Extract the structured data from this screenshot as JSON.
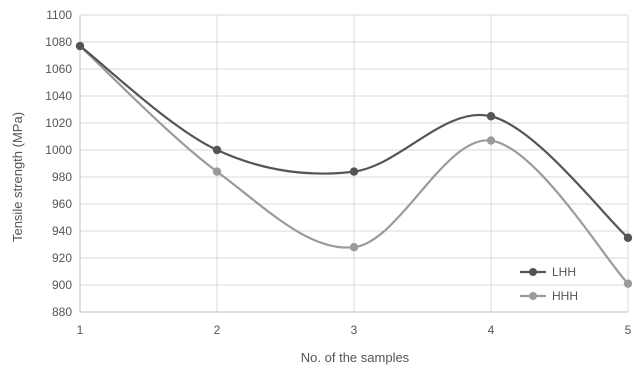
{
  "chart_data": {
    "type": "line",
    "title": "",
    "xlabel": "No. of the samples",
    "ylabel": "Tensile strength (MPa)",
    "x": [
      1,
      2,
      3,
      4,
      5
    ],
    "xlim": [
      1,
      5
    ],
    "ylim": [
      880,
      1100
    ],
    "ystep": 20,
    "grid": true,
    "smooth": true,
    "legend_position": "bottom-right",
    "series": [
      {
        "name": "LHH",
        "values": [
          1077,
          1000,
          984,
          1025,
          935
        ],
        "color": "#555555"
      },
      {
        "name": "HHH",
        "values": [
          1077,
          984,
          928,
          1007,
          901
        ],
        "color": "#9a9a9a"
      }
    ]
  }
}
